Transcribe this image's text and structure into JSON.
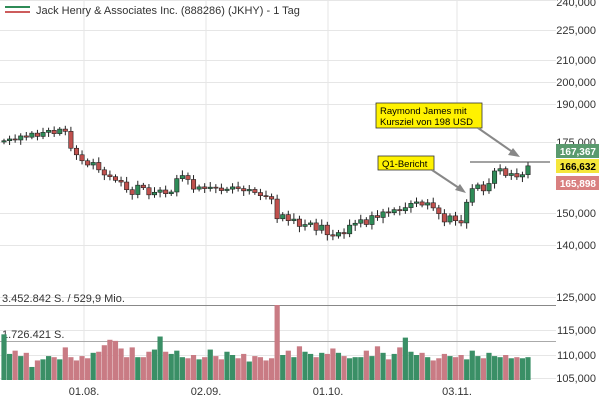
{
  "header": {
    "legend_swatch_colors": [
      "#2e8b57",
      "#cd5c5c"
    ],
    "title": "Jack Henry & Associates Inc. (888286) (JKHY) - 1 Tag"
  },
  "price_axis": {
    "labels": [
      "240,000",
      "225,000",
      "210,000",
      "200,000",
      "190,000",
      "175,000",
      "150,000",
      "140,000",
      "125,000",
      "115,000",
      "110,000",
      "105,000"
    ]
  },
  "price_tags": {
    "high": {
      "label": "167,367",
      "bg": "#5a9a6e",
      "fg": "#ffffff"
    },
    "current": {
      "label": "166,632",
      "bg": "#f5e63b",
      "fg": "#000000"
    },
    "low": {
      "label": "165,898",
      "bg": "#d98080",
      "fg": "#ffffff"
    }
  },
  "x_axis": {
    "labels": [
      "01.08.",
      "02.09.",
      "01.10.",
      "03.11."
    ]
  },
  "volume": {
    "label_1": "3.452.842 S. / 529,9 Mio.",
    "label_2": "1.726.421 S."
  },
  "annotations": {
    "q1": "Q1-Bericht",
    "raymond_line1": "Raymond James mit",
    "raymond_line2": "Kursziel von 198 USD"
  },
  "colors": {
    "up": "#2e8b57",
    "down": "#c0504d",
    "vol_up": "#3a8f66",
    "vol_down": "#c97b84",
    "note_bg": "#fff200",
    "grid": "#e6e6e6"
  },
  "chart_data": {
    "type": "candlestick",
    "title": "Jack Henry & Associates Inc. (888286) (JKHY) - 1 Tag",
    "interval": "1 Tag",
    "last_high": 167.367,
    "last_close": 166.632,
    "last_low": 165.898,
    "close_series": [
      175.5,
      176.2,
      175.8,
      177.4,
      176.9,
      178.5,
      177.2,
      178.8,
      179.6,
      178.3,
      180.1,
      179.2,
      172.8,
      170.5,
      168.4,
      166.9,
      167.8,
      165.2,
      163.4,
      162.8,
      161.5,
      160.9,
      158.2,
      156.5,
      159.8,
      158.9,
      156.4,
      157.3,
      158.1,
      156.8,
      157.4,
      162.1,
      163.2,
      161.8,
      158.4,
      159.2,
      158.6,
      159.1,
      158.8,
      157.9,
      158.4,
      159.2,
      158.6,
      157.8,
      158.3,
      157.2,
      156.1,
      155.8,
      154.9,
      148.2,
      149.5,
      147.6,
      148.1,
      145.8,
      146.4,
      146.9,
      144.6,
      146.2,
      143.2,
      142.8,
      143.9,
      143.5,
      146.2,
      146.8,
      147.9,
      146.4,
      149.2,
      148.6,
      150.4,
      150.1,
      151.2,
      150.8,
      151.9,
      153.4,
      153.9,
      152.8,
      153.6,
      151.8,
      149.8,
      147.2,
      149.1,
      147.6,
      146.9,
      153.8,
      158.6,
      159.9,
      157.8,
      160.4,
      164.8,
      165.6,
      163.2,
      163.9,
      162.7,
      163.5,
      166.6
    ],
    "volume_shares": [
      2.1,
      1.2,
      1.35,
      1.1,
      1.25,
      0.6,
      0.9,
      0.95,
      1.1,
      1.05,
      0.95,
      1.5,
      1.05,
      0.9,
      1.1,
      1.0,
      1.25,
      1.3,
      1.6,
      1.85,
      1.8,
      1.45,
      1.05,
      1.5,
      1.05,
      1.05,
      1.3,
      1.4,
      2.0,
      1.3,
      1.2,
      1.35,
      1.05,
      1.0,
      1.15,
      0.95,
      1.05,
      1.4,
      1.1,
      0.95,
      1.3,
      1.15,
      1.0,
      1.2,
      0.85,
      1.1,
      1.05,
      0.9,
      1.0,
      3.45,
      1.15,
      1.35,
      1.05,
      1.55,
      1.3,
      1.2,
      1.05,
      1.25,
      1.2,
      1.45,
      1.25,
      1.1,
      1.0,
      1.05,
      1.05,
      1.35,
      1.1,
      1.55,
      1.25,
      0.95,
      1.2,
      1.5,
      1.95,
      1.3,
      1.15,
      1.25,
      1.05,
      0.9,
      1.0,
      1.2,
      1.1,
      1.05,
      1.15,
      0.95,
      1.35,
      1.1,
      1.0,
      1.25,
      1.1,
      1.05,
      1.15,
      1.0,
      1.05,
      1.0,
      1.05
    ],
    "volume_max_shares": 3452842,
    "volume_max_value": "529,9 Mio.",
    "volume_mid_shares": 1726421,
    "x_tick_labels": [
      "01.08.",
      "02.09.",
      "01.10.",
      "03.11."
    ],
    "y_ticks": [
      240,
      225,
      210,
      200,
      190,
      175,
      150,
      140,
      125,
      115,
      110,
      105
    ],
    "annotations": [
      "Q1-Bericht",
      "Raymond James mit Kursziel von 198 USD"
    ]
  }
}
